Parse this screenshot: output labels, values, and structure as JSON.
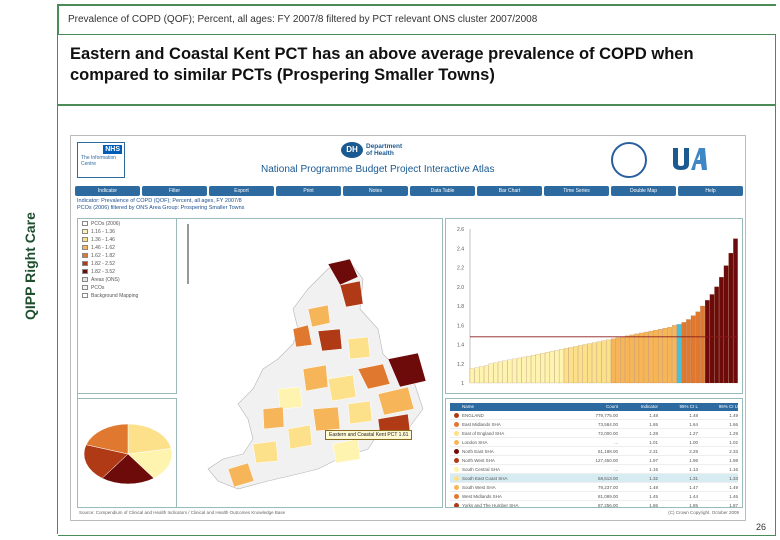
{
  "slide": {
    "subtitle": "Prevalence of COPD (QOF); Percent, all ages: FY 2007/8 filtered by PCT relevant ONS cluster 2007/2008",
    "headline": "Eastern and Coastal Kent PCT has an above average prevalence of COPD when compared to similar PCTs (Prospering Smaller Towns)",
    "side_label": "QIPP Right Care",
    "page_number": "26"
  },
  "atlas": {
    "nhs_badge": "NHS",
    "nhs_text": "The Information Centre",
    "dh_badge": "DH",
    "dh_text_1": "Department",
    "dh_text_2": "of Health",
    "title": "National Programme Budget Project Interactive Atlas",
    "menu": [
      "Indicator",
      "Filter",
      "Export",
      "Print",
      "Notes",
      "Data Table",
      "Bar Chart",
      "Time Series",
      "Double Map",
      "Help"
    ],
    "info_line_1": "Indicator: Prevalence of COPD (QOF); Percent, all ages, FY 2007/8",
    "info_line_2": "PCOs (2006) filtered by ONS Area Group: Prospering Smaller Towns",
    "legend": [
      {
        "label": "PCOs (2006)",
        "color": "#ffffff"
      },
      {
        "label": "1.16 - 1.36",
        "color": "#fff3b0"
      },
      {
        "label": "1.36 - 1.46",
        "color": "#fde08a"
      },
      {
        "label": "1.46 - 1.62",
        "color": "#f7b55a"
      },
      {
        "label": "1.62 - 1.82",
        "color": "#e0782f"
      },
      {
        "label": "1.82 - 2.52",
        "color": "#b03a16"
      },
      {
        "label": "1.82 - 3.52",
        "color": "#6d0a0a"
      },
      {
        "label": "Areas (ONS)",
        "color": "#e6e6e6"
      },
      {
        "label": "PCOs",
        "color": "#f4f4f4"
      },
      {
        "label": "Background Mapping",
        "color": "#ffffff"
      }
    ],
    "tooltip": "Eastern and Coastal Kent PCT 1.61",
    "table_headers": [
      "Name",
      "Count",
      "Indicator",
      "95% CI L",
      "95% CI U"
    ],
    "table_rows": [
      {
        "name": "ENGLAND",
        "count": "779,775.00",
        "ind": "1.48",
        "lo": "1.48",
        "hi": "1.49",
        "color": "#b03a16",
        "hl": false
      },
      {
        "name": "East Midlands SHA",
        "count": "73,584.00",
        "ind": "1.65",
        "lo": "1.64",
        "hi": "1.66",
        "color": "#e0782f",
        "hl": false
      },
      {
        "name": "East of England SHA",
        "count": "72,000.00",
        "ind": "1.28",
        "lo": "1.27",
        "hi": "1.29",
        "color": "#fde08a",
        "hl": false
      },
      {
        "name": "London SHA",
        "count": "...",
        "ind": "1.01",
        "lo": "1.00",
        "hi": "1.02",
        "color": "#f7b55a",
        "hl": false
      },
      {
        "name": "North East SHA",
        "count": "61,188.00",
        "ind": "2.31",
        "lo": "2.29",
        "hi": "2.33",
        "color": "#6d0a0a",
        "hl": false
      },
      {
        "name": "North West SHA",
        "count": "127,450.00",
        "ind": "1.97",
        "lo": "1.96",
        "hi": "1.98",
        "color": "#b03a16",
        "hl": false
      },
      {
        "name": "South Central SHA",
        "count": "...",
        "ind": "1.15",
        "lo": "1.13",
        "hi": "1.16",
        "color": "#fff3b0",
        "hl": false
      },
      {
        "name": "South East Coast SHA",
        "count": "58,613.00",
        "ind": "1.32",
        "lo": "1.31",
        "hi": "1.33",
        "color": "#fde08a",
        "hl": true
      },
      {
        "name": "South West SHA",
        "count": "79,237.00",
        "ind": "1.48",
        "lo": "1.47",
        "hi": "1.49",
        "color": "#f7b55a",
        "hl": false
      },
      {
        "name": "West Midlands SHA",
        "count": "81,089.00",
        "ind": "1.45",
        "lo": "1.44",
        "hi": "1.46",
        "color": "#e0782f",
        "hl": false
      },
      {
        "name": "Yorks and The Humber SHA",
        "count": "87,256.00",
        "ind": "1.86",
        "lo": "1.85",
        "hi": "1.87",
        "color": "#b03a16",
        "hl": false
      }
    ],
    "source": "Source: Compendium of Clinical and Health Indicators / Clinical and Health Outcomes Knowledge Base",
    "copyright": "(C) Crown Copyright. October 2009"
  },
  "chart_data": {
    "type": "bar",
    "ylabel": "",
    "ylim": [
      1.0,
      2.6
    ],
    "yticks": [
      "2.6",
      "2.4",
      "2.2",
      "2.0",
      "1.8",
      "1.6",
      "1.4",
      "1.2",
      "1"
    ],
    "reference_line": 1.48,
    "values": [
      1.15,
      1.16,
      1.17,
      1.18,
      1.2,
      1.21,
      1.22,
      1.23,
      1.24,
      1.25,
      1.26,
      1.27,
      1.28,
      1.29,
      1.3,
      1.31,
      1.32,
      1.33,
      1.34,
      1.35,
      1.36,
      1.37,
      1.38,
      1.39,
      1.4,
      1.41,
      1.42,
      1.43,
      1.44,
      1.45,
      1.46,
      1.47,
      1.48,
      1.49,
      1.5,
      1.51,
      1.52,
      1.53,
      1.54,
      1.55,
      1.56,
      1.57,
      1.58,
      1.6,
      1.61,
      1.63,
      1.66,
      1.7,
      1.74,
      1.8,
      1.86,
      1.92,
      2.0,
      2.1,
      2.22,
      2.35,
      2.5
    ],
    "colors": [
      "#fff3b0",
      "#fde08a",
      "#f7b55a",
      "#e0782f",
      "#6d0a0a"
    ],
    "highlight_index": 44
  },
  "pie_data": {
    "type": "pie",
    "values": [
      22,
      18,
      20,
      20,
      20
    ],
    "colors": [
      "#fde08a",
      "#fff3b0",
      "#6d0a0a",
      "#b03a16",
      "#e0782f"
    ]
  }
}
